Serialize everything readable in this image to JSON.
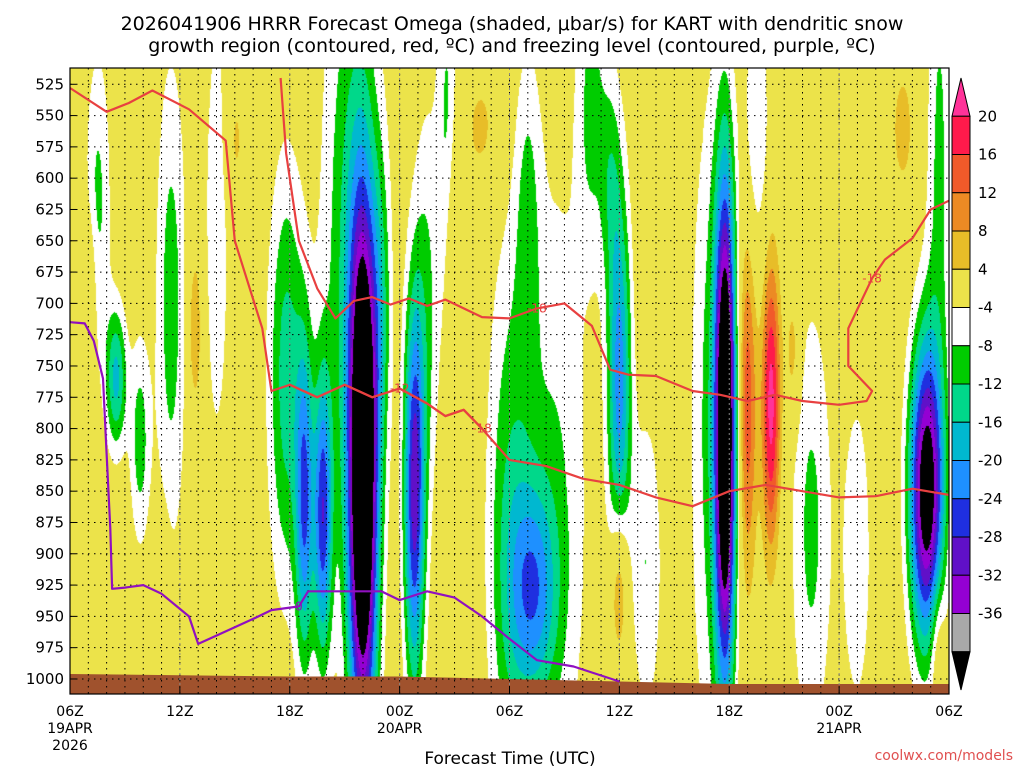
{
  "title_line1": "2026041906 HRRR Forecast Omega (shaded, μbar/s) for KART with dendritic snow",
  "title_line2": "growth region (contoured, red, ºC) and freezing level (contoured, purple, ºC)",
  "credit": "coolwx.com/models",
  "colors": {
    "dgz_contour": "#e84040",
    "freezing_contour": "#9010c0",
    "terrain": "#a0522d",
    "grid": "#000000"
  },
  "chart_data": {
    "type": "heatmap",
    "title": "2026041906 HRRR Forecast Omega (shaded, μbar/s) for KART with dendritic snow growth region (contoured, red, ºC) and freezing level (contoured, purple, ºC)",
    "xlabel": "Forecast Time (UTC)",
    "ylabel": "",
    "x_hours_range": [
      0,
      48
    ],
    "y_range_hpa": [
      1012,
      512
    ],
    "y_inverted": true,
    "grid": true,
    "y_ticks": [
      525,
      550,
      575,
      600,
      625,
      650,
      675,
      700,
      725,
      750,
      775,
      800,
      825,
      850,
      875,
      900,
      925,
      950,
      975,
      1000
    ],
    "x_ticks": [
      {
        "hour": 0,
        "lines": [
          "06Z",
          "19APR",
          "2026"
        ]
      },
      {
        "hour": 6,
        "lines": [
          "12Z"
        ]
      },
      {
        "hour": 12,
        "lines": [
          "18Z"
        ]
      },
      {
        "hour": 18,
        "lines": [
          "00Z",
          "20APR"
        ]
      },
      {
        "hour": 24,
        "lines": [
          "06Z"
        ]
      },
      {
        "hour": 30,
        "lines": [
          "12Z"
        ]
      },
      {
        "hour": 36,
        "lines": [
          "18Z"
        ]
      },
      {
        "hour": 42,
        "lines": [
          "00Z",
          "21APR"
        ]
      },
      {
        "hour": 48,
        "lines": [
          "06Z"
        ]
      }
    ],
    "colorbar": {
      "labels": [
        "20",
        "16",
        "12",
        "8",
        "4",
        "-4",
        "-8",
        "-12",
        "-16",
        "-20",
        "-24",
        "-28",
        "-32",
        "-36"
      ],
      "bins": [
        {
          "color": "#ff3399"
        },
        {
          "color": "#ff1a4b"
        },
        {
          "color": "#f15a2a"
        },
        {
          "color": "#ec8a24"
        },
        {
          "color": "#e8bd28"
        },
        {
          "color": "#ece34a"
        },
        {
          "color": "#ffffff"
        },
        {
          "color": "#00cc00"
        },
        {
          "color": "#00d88a"
        },
        {
          "color": "#00b8d0"
        },
        {
          "color": "#1e90ff"
        },
        {
          "color": "#1f2fe0"
        },
        {
          "color": "#6010c8"
        },
        {
          "color": "#9400d3"
        },
        {
          "color": "#a9a9a9"
        },
        {
          "color": "#000000"
        }
      ]
    },
    "omega_features": [
      {
        "t": 1.5,
        "p": 620,
        "sx": 0.5,
        "sy": 90,
        "a": -9
      },
      {
        "t": 2.5,
        "p": 760,
        "sx": 0.4,
        "sy": 40,
        "a": -17
      },
      {
        "t": 3.8,
        "p": 810,
        "sx": 0.4,
        "sy": 60,
        "a": -10
      },
      {
        "t": 5.5,
        "p": 700,
        "sx": 0.6,
        "sy": 140,
        "a": -10
      },
      {
        "t": 8.0,
        "p": 640,
        "sx": 0.5,
        "sy": 140,
        "a": -7
      },
      {
        "t": 6.8,
        "p": 720,
        "sx": 0.3,
        "sy": 50,
        "a": 8
      },
      {
        "t": 9.0,
        "p": 570,
        "sx": 0.4,
        "sy": 40,
        "a": 5
      },
      {
        "t": 1.0,
        "p": 680,
        "sx": 0.3,
        "sy": 40,
        "a": 6
      },
      {
        "t": 5.0,
        "p": 930,
        "sx": 0.3,
        "sy": 40,
        "a": 5
      },
      {
        "t": 11.8,
        "p": 760,
        "sx": 0.7,
        "sy": 120,
        "a": -14
      },
      {
        "t": 12.8,
        "p": 860,
        "sx": 0.35,
        "sy": 90,
        "a": -22
      },
      {
        "t": 13.8,
        "p": 870,
        "sx": 0.35,
        "sy": 80,
        "a": -25
      },
      {
        "t": 15.3,
        "p": 660,
        "sx": 1.1,
        "sy": 200,
        "a": -12
      },
      {
        "t": 16.0,
        "p": 840,
        "sx": 0.55,
        "sy": 150,
        "a": -52
      },
      {
        "t": 17.0,
        "p": 700,
        "sx": 0.4,
        "sy": 90,
        "a": -8
      },
      {
        "t": 18.8,
        "p": 850,
        "sx": 0.4,
        "sy": 110,
        "a": -30
      },
      {
        "t": 19.5,
        "p": 700,
        "sx": 0.5,
        "sy": 120,
        "a": -8
      },
      {
        "t": 20.6,
        "p": 560,
        "sx": 0.4,
        "sy": 110,
        "a": -9
      },
      {
        "t": 21.0,
        "p": 650,
        "sx": 0.4,
        "sy": 60,
        "a": 6
      },
      {
        "t": 22.5,
        "p": 560,
        "sx": 0.8,
        "sy": 40,
        "a": 5
      },
      {
        "t": 24.0,
        "p": 880,
        "sx": 0.9,
        "sy": 160,
        "a": -11
      },
      {
        "t": 25.3,
        "p": 930,
        "sx": 0.9,
        "sy": 60,
        "a": -17
      },
      {
        "t": 26.5,
        "p": 850,
        "sx": 1.3,
        "sy": 190,
        "a": -8
      },
      {
        "t": 25.0,
        "p": 620,
        "sx": 0.5,
        "sy": 90,
        "a": -7
      },
      {
        "t": 28.5,
        "p": 540,
        "sx": 0.6,
        "sy": 90,
        "a": -9
      },
      {
        "t": 29.5,
        "p": 600,
        "sx": 0.4,
        "sy": 60,
        "a": -7
      },
      {
        "t": 30.0,
        "p": 760,
        "sx": 0.45,
        "sy": 110,
        "a": -22
      },
      {
        "t": 30.0,
        "p": 925,
        "sx": 0.35,
        "sy": 45,
        "a": 13
      },
      {
        "t": 31.5,
        "p": 910,
        "sx": 0.6,
        "sy": 90,
        "a": -8
      },
      {
        "t": 35.0,
        "p": 800,
        "sx": 0.8,
        "sy": 200,
        "a": -9
      },
      {
        "t": 35.8,
        "p": 800,
        "sx": 0.4,
        "sy": 140,
        "a": -48
      },
      {
        "t": 37.0,
        "p": 780,
        "sx": 0.35,
        "sy": 100,
        "a": 15
      },
      {
        "t": 38.3,
        "p": 780,
        "sx": 0.35,
        "sy": 80,
        "a": 22
      },
      {
        "t": 39.5,
        "p": 740,
        "sx": 0.3,
        "sy": 40,
        "a": 7
      },
      {
        "t": 40.5,
        "p": 880,
        "sx": 0.8,
        "sy": 130,
        "a": -9
      },
      {
        "t": 37.5,
        "p": 560,
        "sx": 0.5,
        "sy": 80,
        "a": -8
      },
      {
        "t": 43.0,
        "p": 900,
        "sx": 0.6,
        "sy": 100,
        "a": -7
      },
      {
        "t": 45.5,
        "p": 560,
        "sx": 0.6,
        "sy": 50,
        "a": 5
      },
      {
        "t": 46.8,
        "p": 850,
        "sx": 0.65,
        "sy": 85,
        "a": -42
      },
      {
        "t": 47.4,
        "p": 970,
        "sx": 0.3,
        "sy": 40,
        "a": 7
      },
      {
        "t": 47.5,
        "p": 580,
        "sx": 0.5,
        "sy": 150,
        "a": -9
      }
    ],
    "terrain_surface_hpa": [
      [
        0,
        996
      ],
      [
        6,
        997
      ],
      [
        12,
        998
      ],
      [
        18,
        998
      ],
      [
        24,
        1000
      ],
      [
        30,
        1002
      ],
      [
        36,
        1004
      ],
      [
        42,
        1004
      ],
      [
        48,
        1004
      ]
    ],
    "dgz_contours": [
      {
        "label": "-18",
        "points": [
          [
            0,
            528
          ],
          [
            2,
            547
          ],
          [
            3.2,
            540
          ],
          [
            4.5,
            530
          ],
          [
            6.5,
            545
          ],
          [
            8.5,
            570
          ],
          [
            9,
            650
          ],
          [
            10.5,
            720
          ],
          [
            11,
            770
          ],
          [
            12,
            765
          ],
          [
            13.5,
            775
          ],
          [
            15,
            765
          ],
          [
            16.5,
            775
          ],
          [
            18,
            768
          ],
          [
            19.5,
            780
          ],
          [
            20.5,
            790
          ],
          [
            21.5,
            785
          ],
          [
            22.5,
            800
          ],
          [
            24,
            825
          ],
          [
            26,
            830
          ],
          [
            28,
            840
          ],
          [
            30,
            845
          ],
          [
            32,
            855
          ],
          [
            34,
            862
          ],
          [
            36,
            850
          ],
          [
            38,
            845
          ],
          [
            40,
            850
          ],
          [
            42,
            855
          ],
          [
            44,
            854
          ],
          [
            46,
            848
          ],
          [
            48,
            853
          ]
        ]
      },
      {
        "label": "-12",
        "points": [
          [
            12,
            765
          ],
          [
            13.5,
            775
          ],
          [
            15,
            765
          ],
          [
            16.5,
            775
          ],
          [
            18,
            768
          ],
          [
            19.5,
            780
          ],
          [
            20.5,
            790
          ],
          [
            21.5,
            785
          ],
          [
            22.5,
            800
          ]
        ]
      },
      {
        "label": "-18",
        "points": [
          [
            11.5,
            520
          ],
          [
            11.8,
            580
          ],
          [
            12.5,
            650
          ],
          [
            13.5,
            688
          ],
          [
            14.5,
            712
          ],
          [
            15.5,
            698
          ],
          [
            16.5,
            695
          ],
          [
            17.5,
            701
          ],
          [
            18.5,
            696
          ],
          [
            19.5,
            702
          ],
          [
            20.5,
            697
          ],
          [
            21.5,
            704
          ],
          [
            22.5,
            711
          ],
          [
            24,
            712
          ],
          [
            25.5,
            704
          ],
          [
            27,
            700
          ],
          [
            28.5,
            718
          ],
          [
            29.5,
            753
          ],
          [
            30.5,
            757
          ],
          [
            32,
            758
          ],
          [
            34,
            770
          ],
          [
            35.5,
            773
          ],
          [
            37,
            778
          ],
          [
            38.5,
            773
          ],
          [
            40,
            778
          ],
          [
            42,
            781
          ]
        ]
      },
      {
        "label": "-18",
        "points": [
          [
            42,
            781
          ],
          [
            43.5,
            778
          ],
          [
            43.8,
            770
          ],
          [
            42.5,
            750
          ],
          [
            42.5,
            720
          ],
          [
            43.8,
            680
          ],
          [
            44.5,
            665
          ],
          [
            46,
            648
          ],
          [
            47,
            625
          ],
          [
            48,
            618
          ]
        ]
      }
    ],
    "freezing_contours": [
      {
        "label": "0",
        "points": [
          [
            0,
            715
          ],
          [
            0.8,
            716
          ],
          [
            1.3,
            730
          ],
          [
            1.8,
            760
          ],
          [
            2,
            820
          ],
          [
            2.2,
            880
          ],
          [
            2.3,
            928
          ],
          [
            3,
            927
          ],
          [
            4,
            925
          ],
          [
            5,
            932
          ],
          [
            6.5,
            950
          ],
          [
            7,
            972
          ],
          [
            8.5,
            962
          ],
          [
            10,
            952
          ],
          [
            11,
            945
          ],
          [
            12.5,
            942
          ],
          [
            13,
            930
          ],
          [
            14,
            930
          ],
          [
            15.5,
            930
          ],
          [
            17,
            930
          ],
          [
            18,
            937
          ],
          [
            19.5,
            930
          ],
          [
            21,
            935
          ],
          [
            22.5,
            950
          ],
          [
            24,
            968
          ],
          [
            25.5,
            985
          ],
          [
            27.5,
            990
          ],
          [
            30,
            1002
          ]
        ]
      }
    ]
  }
}
